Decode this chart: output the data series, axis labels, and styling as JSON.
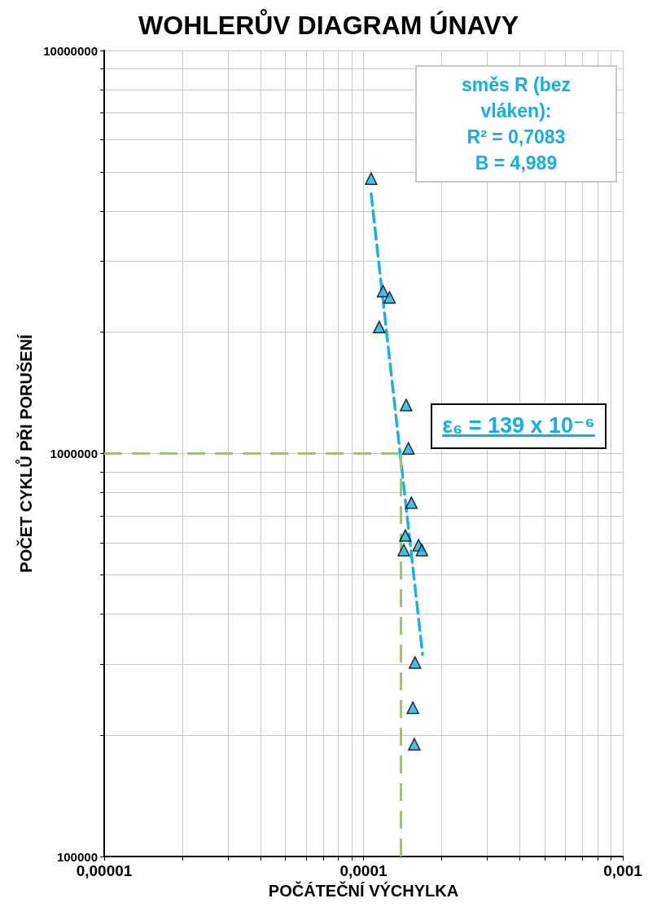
{
  "chart_data": {
    "type": "scatter",
    "title": "WOHLERŮV DIAGRAM ÚNAVY",
    "xlabel": "POČÁTEČNÍ VÝCHYLKA",
    "ylabel": "POČET CYKLŮ PŘI PORUŠENÍ",
    "log": "xy",
    "grid": true,
    "marker": "triangle",
    "xlim": [
      1e-05,
      0.001
    ],
    "ylim": [
      100000,
      10000000
    ],
    "xticks": [
      {
        "value": 1e-05,
        "label": "0,00001"
      },
      {
        "value": 2e-05,
        "label": null
      },
      {
        "value": 3e-05,
        "label": null
      },
      {
        "value": 4e-05,
        "label": null
      },
      {
        "value": 5e-05,
        "label": null
      },
      {
        "value": 6e-05,
        "label": null
      },
      {
        "value": 7e-05,
        "label": null
      },
      {
        "value": 8e-05,
        "label": null
      },
      {
        "value": 9e-05,
        "label": null
      },
      {
        "value": 0.0001,
        "label": "0,0001"
      },
      {
        "value": 0.0002,
        "label": null
      },
      {
        "value": 0.0003,
        "label": null
      },
      {
        "value": 0.0004,
        "label": null
      },
      {
        "value": 0.0005,
        "label": null
      },
      {
        "value": 0.0006,
        "label": null
      },
      {
        "value": 0.0007,
        "label": null
      },
      {
        "value": 0.0008,
        "label": null
      },
      {
        "value": 0.0009,
        "label": null
      },
      {
        "value": 0.001,
        "label": "0,001"
      }
    ],
    "yticks": [
      100000,
      {
        "value": 200000,
        "label": null
      },
      {
        "value": 300000,
        "label": null
      },
      {
        "value": 400000,
        "label": null
      },
      {
        "value": 500000,
        "label": null
      },
      {
        "value": 600000,
        "label": null
      },
      {
        "value": 700000,
        "label": null
      },
      {
        "value": 800000,
        "label": null
      },
      {
        "value": 900000,
        "label": null
      },
      1000000,
      {
        "value": 2000000,
        "label": null
      },
      {
        "value": 3000000,
        "label": null
      },
      {
        "value": 4000000,
        "label": null
      },
      {
        "value": 5000000,
        "label": null
      },
      {
        "value": 6000000,
        "label": null
      },
      {
        "value": 7000000,
        "label": null
      },
      {
        "value": 8000000,
        "label": null
      },
      {
        "value": 9000000,
        "label": null
      },
      10000000
    ],
    "series": [
      {
        "color": "#1ab0e8",
        "x": [
          0.000107,
          0.000119,
          0.000126,
          0.000115,
          0.000146,
          0.000149,
          0.000153,
          0.000145,
          0.000143,
          0.000163,
          0.000168,
          0.000158,
          0.000155,
          0.000157
        ],
        "values": [
          4810000,
          2530000,
          2440000,
          2060000,
          1320000,
          1030000,
          755000,
          626000,
          576000,
          592000,
          576000,
          303000,
          234000,
          190000
        ]
      },
      {
        "type": "line",
        "color": "#1ab0e8",
        "line_style": "dashed",
        "marker": "none",
        "x": [
          0.000107,
          0.000169
        ],
        "values": [
          4410000,
          317000
        ]
      }
    ],
    "ref_lines": [
      {
        "axis": "y",
        "value": 1000000,
        "color": "#92d050",
        "line_style": "dashed"
      },
      {
        "axis": "x",
        "value": 0.000139,
        "color": "#92d050",
        "line_style": "dashed"
      }
    ],
    "annotations": [
      "směs R (bez vláken):",
      "R² = 0,7083",
      "B = 4,989",
      "ε₆ = 139 x 10⁻⁶"
    ]
  }
}
